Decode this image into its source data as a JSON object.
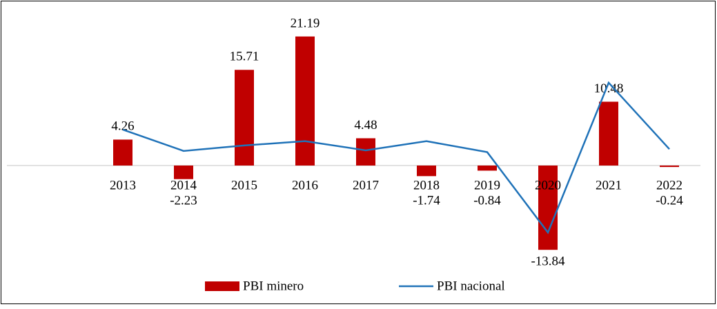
{
  "chart_data": {
    "type": "bar-line",
    "categories": [
      "2013",
      "2014",
      "2015",
      "2016",
      "2017",
      "2018",
      "2019",
      "2020",
      "2021",
      "2022"
    ],
    "series": [
      {
        "name": "PBI minero",
        "type": "bar",
        "color": "#c00000",
        "values": [
          4.26,
          -2.23,
          15.71,
          21.19,
          4.48,
          -1.74,
          -0.84,
          -13.84,
          10.48,
          -0.24
        ]
      },
      {
        "name": "PBI nacional",
        "type": "line",
        "color": "#1f72b8",
        "values": [
          5.9,
          2.4,
          3.3,
          4.0,
          2.5,
          4.0,
          2.2,
          -11.0,
          13.6,
          2.7
        ]
      }
    ]
  }
}
